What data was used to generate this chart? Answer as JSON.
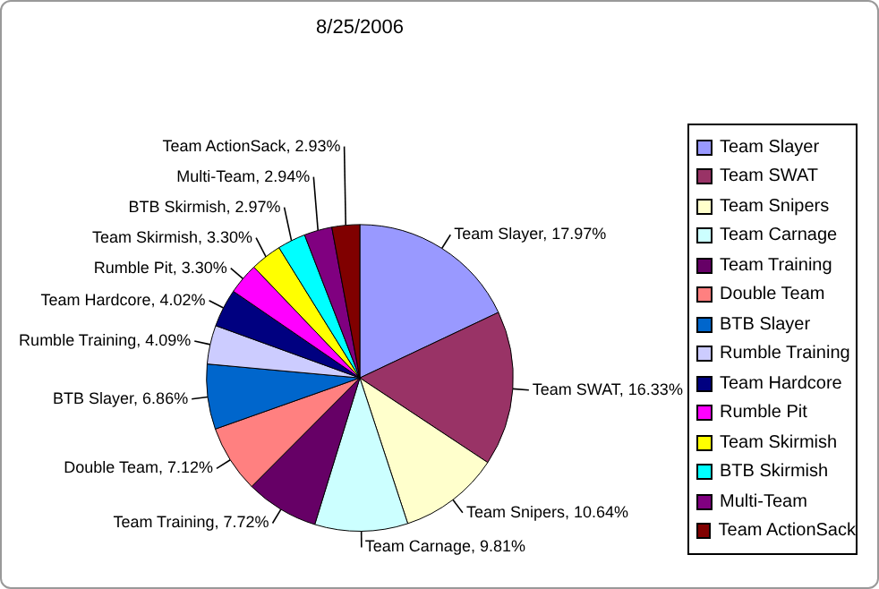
{
  "chart_data": {
    "type": "pie",
    "title": "8/25/2006",
    "categories": [
      "Team Slayer",
      "Team SWAT",
      "Team Snipers",
      "Team Carnage",
      "Team Training",
      "Double Team",
      "BTB Slayer",
      "Rumble Training",
      "Team Hardcore",
      "Rumble Pit",
      "Team Skirmish",
      "BTB Skirmish",
      "Multi-Team",
      "Team ActionSack"
    ],
    "values": [
      17.97,
      16.33,
      10.64,
      9.81,
      7.72,
      7.12,
      6.86,
      4.09,
      4.02,
      3.3,
      3.3,
      2.97,
      2.94,
      2.93
    ],
    "colors": [
      "#9999ff",
      "#993366",
      "#ffffcc",
      "#ccffff",
      "#660066",
      "#ff8080",
      "#0066cc",
      "#ccccff",
      "#000080",
      "#ff00ff",
      "#ffff00",
      "#00ffff",
      "#800080",
      "#800000"
    ],
    "value_labels": [
      "Team Slayer, 17.97%",
      "Team SWAT, 16.33%",
      "Team Snipers, 10.64%",
      "Team Carnage, 9.81%",
      "Team Training, 7.72%",
      "Double Team, 7.12%",
      "BTB Slayer, 6.86%",
      "Rumble Training, 4.09%",
      "Team Hardcore, 4.02%",
      "Rumble Pit, 3.30%",
      "Team Skirmish, 3.30%",
      "BTB Skirmish, 2.97%",
      "Multi-Team, 2.94%",
      "Team ActionSack, 2.93%"
    ],
    "legend": "right"
  }
}
